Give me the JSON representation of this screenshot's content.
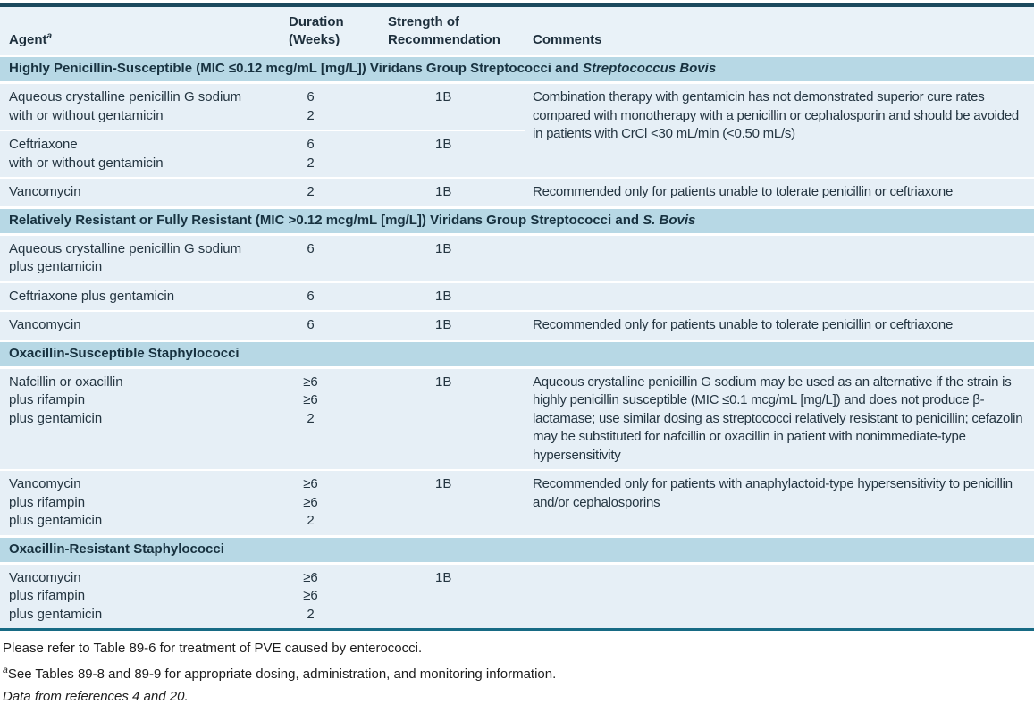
{
  "table": {
    "columns": {
      "agent": "Agent",
      "agent_sup": "a",
      "duration": "Duration\n(Weeks)",
      "strength": "Strength of\nRecommendation",
      "comments": "Comments"
    },
    "sections": [
      {
        "title": "Highly Penicillin-Susceptible (MIC ≤0.12 mcg/mL [mg/L]) Viridans Group Streptococci and ",
        "title_italic": "Streptococcus Bovis",
        "rows": [
          {
            "agent": "Aqueous crystalline penicillin G sodium\nwith or without gentamicin",
            "duration": "6\n2",
            "strength": "1B",
            "comment": "Combination therapy with gentamicin has not demonstrated superior cure rates compared with monotherapy with a penicillin or cephalosporin and should be avoided in patients with CrCl <30 mL/min (<0.50 mL/s)"
          },
          {
            "agent": "Ceftriaxone\nwith or without gentamicin",
            "duration": "6\n2",
            "strength": "1B",
            "comment": ""
          },
          {
            "agent": "Vancomycin",
            "duration": "2",
            "strength": "1B",
            "comment": "Recommended only for patients unable to tolerate penicillin or ceftriaxone"
          }
        ]
      },
      {
        "title": "Relatively Resistant or Fully Resistant (MIC >0.12 mcg/mL [mg/L]) Viridans Group Streptococci and ",
        "title_italic": "S. Bovis",
        "rows": [
          {
            "agent": "Aqueous crystalline penicillin G sodium\nplus gentamicin",
            "duration": "6",
            "strength": "1B",
            "comment": ""
          },
          {
            "agent": "Ceftriaxone plus gentamicin",
            "duration": "6",
            "strength": "1B",
            "comment": ""
          },
          {
            "agent": "Vancomycin",
            "duration": "6",
            "strength": "1B",
            "comment": "Recommended only for patients unable to tolerate penicillin or ceftriaxone"
          }
        ]
      },
      {
        "title": "Oxacillin-Susceptible Staphylococci",
        "rows": [
          {
            "agent": "Nafcillin or oxacillin\nplus rifampin\nplus gentamicin",
            "duration": "≥6\n≥6\n2",
            "strength": "1B",
            "comment": "Aqueous crystalline penicillin G sodium may be used as an alternative if the strain is highly penicillin susceptible (MIC ≤0.1 mcg/mL [mg/L]) and does not produce β-lactamase; use similar dosing as streptococci relatively resistant to penicillin; cefazolin may be substituted for nafcillin or oxacillin in patient with nonimmediate-type hypersensitivity"
          },
          {
            "agent": "Vancomycin\nplus rifampin\nplus gentamicin",
            "duration": "≥6\n≥6\n2",
            "strength": "1B",
            "comment": "Recommended only for patients with anaphylactoid-type hypersensitivity to penicillin and/or cephalosporins"
          }
        ]
      },
      {
        "title": "Oxacillin-Resistant Staphylococci",
        "rows": [
          {
            "agent": "Vancomycin\nplus rifampin\nplus gentamicin",
            "duration": "≥6\n≥6\n2",
            "strength": "1B",
            "comment": ""
          }
        ]
      }
    ],
    "footnotes": {
      "line1": "Please refer to Table 89-6 for treatment of PVE caused by enterococci.",
      "line2_sup": "a",
      "line2": "See Tables 89-8 and 89-9 for appropriate dosing, administration, and monitoring information.",
      "line3": "Data from references 4 and 20."
    },
    "colors": {
      "section_band": "#b7d8e5",
      "row_background": "#e6eff6",
      "top_border": "#1c4a5e",
      "bottom_border": "#176a84",
      "text": "#243541"
    }
  }
}
